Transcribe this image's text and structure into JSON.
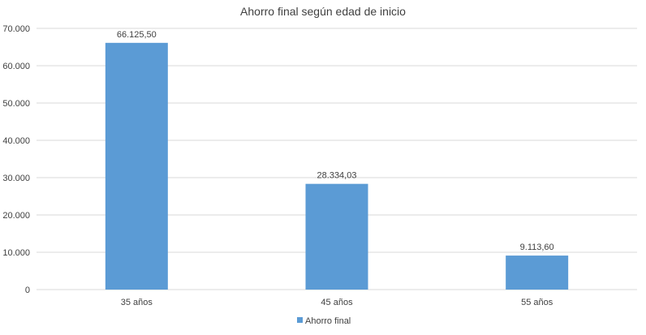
{
  "chart_data": {
    "type": "bar",
    "title": "Ahorro final según edad de inicio",
    "categories": [
      "35 años",
      "45 años",
      "55 años"
    ],
    "series": [
      {
        "name": "Ahorro final",
        "values": [
          66125.5,
          28334.03,
          9113.6
        ],
        "labels": [
          "66.125,50",
          "28.334,03",
          "9.113,60"
        ],
        "color": "#5b9bd5"
      }
    ],
    "ylim": [
      0,
      70000
    ],
    "yticks": [
      0,
      10000,
      20000,
      30000,
      40000,
      50000,
      60000,
      70000
    ],
    "ytick_labels": [
      "0",
      "10.000",
      "20.000",
      "30.000",
      "40.000",
      "50.000",
      "60.000",
      "70.000"
    ],
    "grid": true,
    "grid_color": "#d9d9d9",
    "legend": "bottom"
  }
}
